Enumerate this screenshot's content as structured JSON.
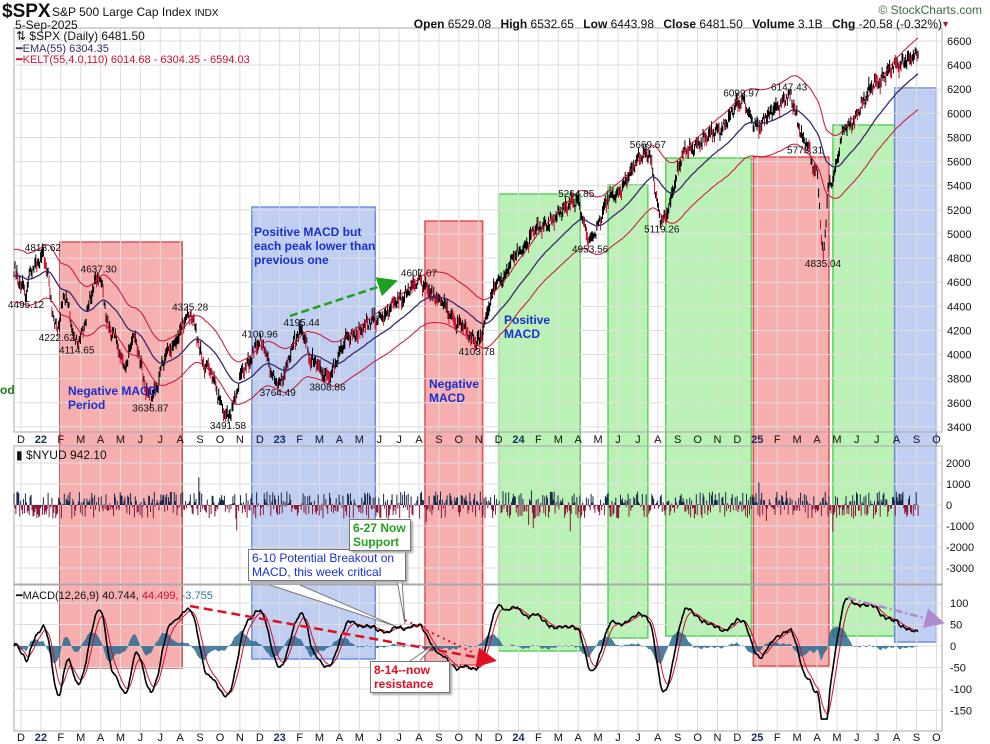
{
  "header": {
    "symbol": "$SPX",
    "description": "S&P 500 Large Cap Index",
    "exchange": "INDX",
    "date": "5-Sep-2025",
    "open_label": "Open",
    "open": "6529.08",
    "high_label": "High",
    "high": "6532.65",
    "low_label": "Low",
    "low": "6443.98",
    "close_label": "Close",
    "close": "6481.50",
    "volume_label": "Volume",
    "volume": "3.1B",
    "chg_label": "Chg",
    "chg": "-20.58 (-0.32%)",
    "brand": "© StockCharts.com"
  },
  "legend": {
    "price": "$SPX (Daily) 6481.50",
    "ema": "EMA(55) 6304.35",
    "kelt": "KELT(55,4.0,110) 6014.68 - 6304.35 - 6594.03",
    "nyud": "$NYUD 942.10",
    "macd_label": "MACD(12,26,9)",
    "macd": "40.744,",
    "signal": "44.499,",
    "hist": "-3.755"
  },
  "annotations": {
    "neg1": "Negative MACD Period",
    "pos1": "Positive MACD but each peak lower than previous one",
    "neg2": "Negative MACD",
    "pos2": "Positive MACD",
    "cut": "od",
    "callout1": "6-10 Potential Breakout on MACD, this week critical",
    "callout2": "6-27 Now Support",
    "callout3": "8-14--now resistance"
  },
  "colors": {
    "price": "#000000",
    "ema": "#3a2a6a",
    "kelt": "#cc1133",
    "red_region": "#f08080",
    "blue_region": "#7f9fe0",
    "green_region": "#7fe07f"
  },
  "chart_data": {
    "type": "line",
    "title": "$SPX S&P 500 Large Cap Index (Daily)",
    "x_unit": "months since Dec 2021",
    "x_tick_labels": [
      "D",
      "22",
      "F",
      "M",
      "A",
      "M",
      "J",
      "J",
      "A",
      "S",
      "O",
      "N",
      "D",
      "23",
      "F",
      "M",
      "A",
      "M",
      "J",
      "J",
      "A",
      "S",
      "O",
      "N",
      "D",
      "24",
      "F",
      "M",
      "A",
      "M",
      "J",
      "J",
      "A",
      "S",
      "O",
      "N",
      "D",
      "25",
      "F",
      "M",
      "A",
      "M",
      "J",
      "J",
      "A",
      "S",
      "O"
    ],
    "price_ticks": [
      3400,
      3600,
      3800,
      4000,
      4200,
      4400,
      4600,
      4800,
      5000,
      5200,
      5400,
      5600,
      5800,
      6000,
      6200,
      6400,
      6600
    ],
    "ylim": [
      3400,
      6600
    ],
    "nyud_ticks": [
      2000,
      1000,
      0,
      -1000,
      -2000,
      -3000
    ],
    "macd_ticks": [
      100,
      50,
      0,
      -50,
      -100,
      -150
    ],
    "key_points": [
      [
        -0.35,
        4690
      ],
      [
        0.1,
        4560
      ],
      [
        0.25,
        4495
      ],
      [
        0.5,
        4700
      ],
      [
        1.1,
        4818
      ],
      [
        1.8,
        4222
      ],
      [
        2.2,
        4480
      ],
      [
        2.8,
        4115
      ],
      [
        3.9,
        4637
      ],
      [
        4.5,
        4200
      ],
      [
        5.3,
        3900
      ],
      [
        5.6,
        4150
      ],
      [
        6.5,
        3637
      ],
      [
        7.5,
        4050
      ],
      [
        8.5,
        4325
      ],
      [
        9.3,
        3900
      ],
      [
        10.4,
        3492
      ],
      [
        11.3,
        3900
      ],
      [
        12.0,
        4100
      ],
      [
        12.9,
        3764
      ],
      [
        14.1,
        4195
      ],
      [
        14.6,
        3950
      ],
      [
        15.4,
        3809
      ],
      [
        16.5,
        4150
      ],
      [
        18,
        4300
      ],
      [
        19,
        4450
      ],
      [
        20,
        4607
      ],
      [
        21,
        4450
      ],
      [
        22,
        4250
      ],
      [
        22.9,
        4104
      ],
      [
        24,
        4600
      ],
      [
        25,
        4850
      ],
      [
        26,
        5050
      ],
      [
        27.9,
        5264
      ],
      [
        28.6,
        4954
      ],
      [
        29.6,
        5300
      ],
      [
        31.5,
        5670
      ],
      [
        32.2,
        5119
      ],
      [
        33.5,
        5700
      ],
      [
        35,
        5850
      ],
      [
        36.2,
        6100
      ],
      [
        37,
        5900
      ],
      [
        38,
        6050
      ],
      [
        38.6,
        6147
      ],
      [
        39.4,
        5773
      ],
      [
        40.0,
        5500
      ],
      [
        40.3,
        4835
      ],
      [
        40.6,
        5400
      ],
      [
        41.5,
        5900
      ],
      [
        43,
        6250
      ],
      [
        44,
        6400
      ],
      [
        45.1,
        6481
      ]
    ],
    "price_labels": [
      {
        "m": 0.25,
        "p": 4495,
        "text": "4495.12",
        "kind": "low"
      },
      {
        "m": 1.1,
        "p": 4818,
        "text": "4818.62",
        "kind": "high"
      },
      {
        "m": 1.8,
        "p": 4222,
        "text": "4222.62",
        "kind": "low"
      },
      {
        "m": 3.9,
        "p": 4637,
        "text": "4637.30",
        "kind": "high"
      },
      {
        "m": 2.8,
        "p": 4115,
        "text": "4114.65",
        "kind": "low"
      },
      {
        "m": 6.5,
        "p": 3637,
        "text": "3636.87",
        "kind": "low"
      },
      {
        "m": 8.5,
        "p": 4325,
        "text": "4325.28",
        "kind": "high"
      },
      {
        "m": 10.4,
        "p": 3492,
        "text": "3491.58",
        "kind": "low"
      },
      {
        "m": 12.0,
        "p": 4100,
        "text": "4100.96",
        "kind": "high"
      },
      {
        "m": 12.9,
        "p": 3764,
        "text": "3764.49",
        "kind": "low"
      },
      {
        "m": 14.1,
        "p": 4195,
        "text": "4195.44",
        "kind": "high"
      },
      {
        "m": 15.4,
        "p": 3809,
        "text": "3808.86",
        "kind": "low"
      },
      {
        "m": 20,
        "p": 4607,
        "text": "4607.07",
        "kind": "high"
      },
      {
        "m": 22.9,
        "p": 4104,
        "text": "4103.78",
        "kind": "low"
      },
      {
        "m": 27.9,
        "p": 5264,
        "text": "5264.85",
        "kind": "high"
      },
      {
        "m": 28.6,
        "p": 4954,
        "text": "4953.56",
        "kind": "low"
      },
      {
        "m": 31.5,
        "p": 5670,
        "text": "5669.67",
        "kind": "high"
      },
      {
        "m": 32.2,
        "p": 5119,
        "text": "5119.26",
        "kind": "low"
      },
      {
        "m": 36.2,
        "p": 6100,
        "text": "6099.97",
        "kind": "high"
      },
      {
        "m": 38.6,
        "p": 6147,
        "text": "6147.43",
        "kind": "high"
      },
      {
        "m": 39.4,
        "p": 5773,
        "text": "5773.31",
        "kind": "low"
      },
      {
        "m": 40.3,
        "p": 4835,
        "text": "4835.04",
        "kind": "low"
      }
    ],
    "regions": [
      {
        "start": 1.95,
        "end": 8.1,
        "type": "red"
      },
      {
        "start": 11.6,
        "end": 17.8,
        "type": "blue"
      },
      {
        "start": 20.3,
        "end": 23.2,
        "type": "red"
      },
      {
        "start": 24.0,
        "end": 28.1,
        "type": "green"
      },
      {
        "start": 29.5,
        "end": 31.5,
        "type": "green"
      },
      {
        "start": 32.4,
        "end": 36.7,
        "type": "green"
      },
      {
        "start": 36.8,
        "end": 40.6,
        "type": "red"
      },
      {
        "start": 40.8,
        "end": 43.9,
        "type": "green"
      },
      {
        "start": 43.9,
        "end": 46,
        "type": "blue"
      }
    ]
  }
}
